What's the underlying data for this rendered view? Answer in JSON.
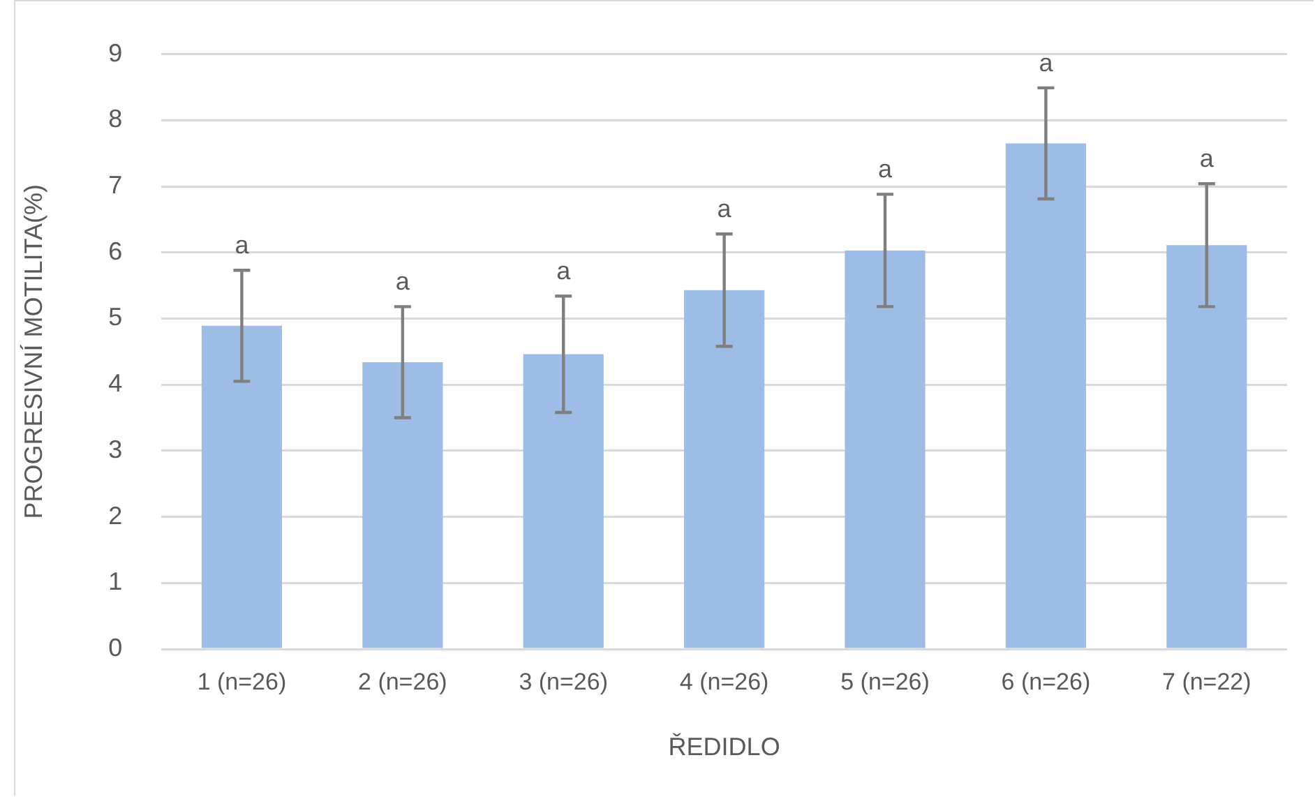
{
  "chart_data": {
    "type": "bar",
    "xlabel": "ŘEDIDLO",
    "ylabel": "PROGRESIVNÍ MOTILITA(%)",
    "categories": [
      "1 (n=26)",
      "2 (n=26)",
      "3 (n=26)",
      "4 (n=26)",
      "5 (n=26)",
      "6 (n=26)",
      "7 (n=22)"
    ],
    "values": [
      4.89,
      4.34,
      4.46,
      5.43,
      6.03,
      7.65,
      6.11
    ],
    "errors": [
      0.84,
      0.84,
      0.88,
      0.85,
      0.85,
      0.84,
      0.93
    ],
    "color": "#9dbde6",
    "ylim": [
      0,
      9
    ],
    "yticks": [
      0,
      1,
      2,
      3,
      4,
      5,
      6,
      7,
      8,
      9
    ],
    "grid": "y",
    "legend": false,
    "annotations": [
      {
        "text": "a",
        "x": "1 (n=26)",
        "y": 5.73
      },
      {
        "text": "a",
        "x": "2 (n=26)",
        "y": 5.18
      },
      {
        "text": "a",
        "x": "3 (n=26)",
        "y": 5.34
      },
      {
        "text": "a",
        "x": "4 (n=26)",
        "y": 6.28
      },
      {
        "text": "a",
        "x": "5 (n=26)",
        "y": 6.88
      },
      {
        "text": "a",
        "x": "6 (n=26)",
        "y": 8.49
      },
      {
        "text": "a",
        "x": "7 (n=22)",
        "y": 7.04
      }
    ]
  }
}
